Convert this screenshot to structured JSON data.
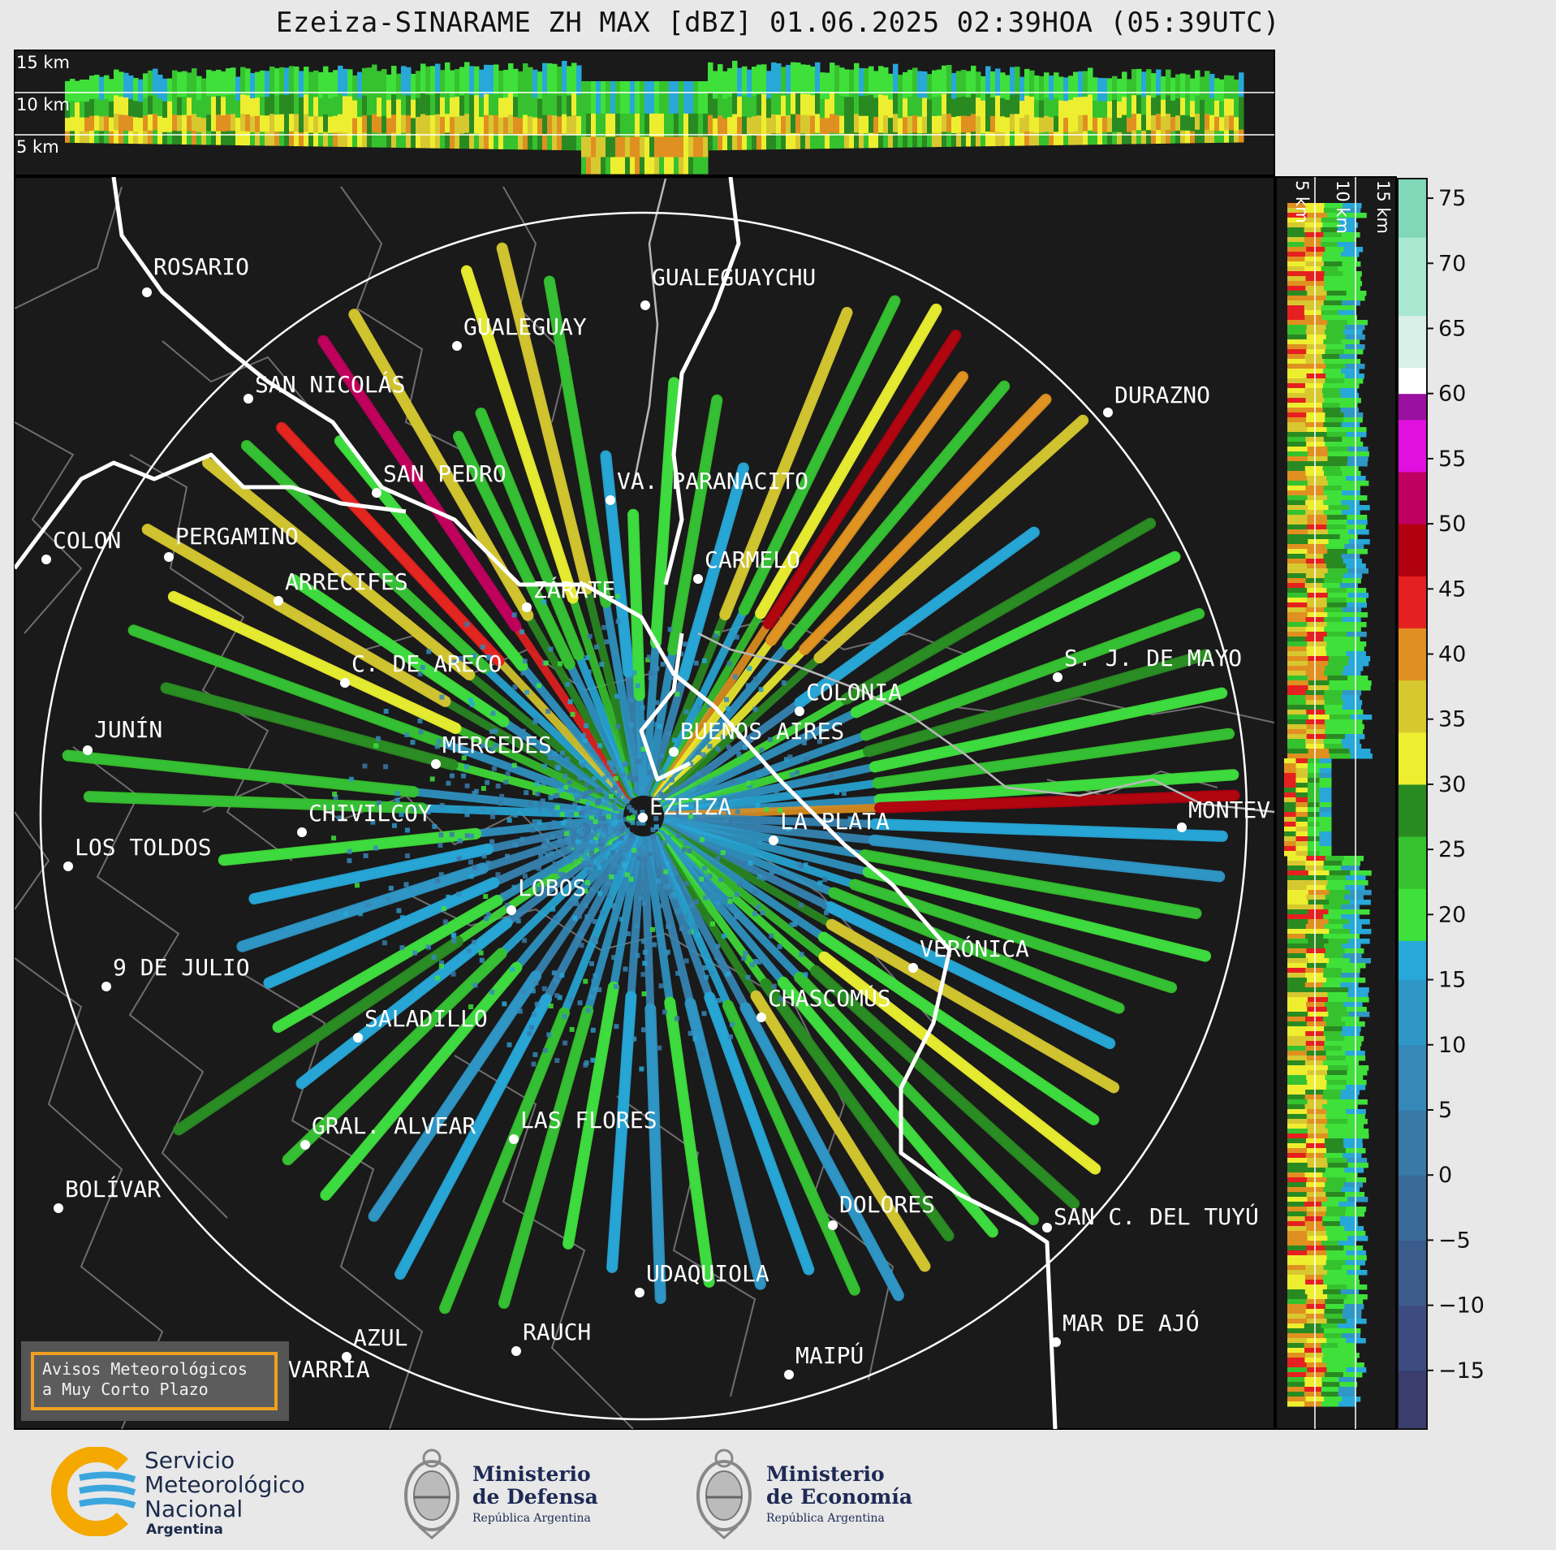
{
  "title": "Ezeiza-SINARAME ZH MAX [dBZ] 01.06.2025 02:39HOA (05:39UTC)",
  "top_panel": {
    "km_labels": [
      "15 km",
      "10 km",
      "5 km"
    ]
  },
  "side_panel": {
    "km_labels": [
      "5 km",
      "10 km",
      "15 km"
    ]
  },
  "colorbar": {
    "ticks": [
      "75",
      "70",
      "65",
      "60",
      "55",
      "50",
      "45",
      "40",
      "35",
      "30",
      "25",
      "20",
      "15",
      "10",
      "5",
      "0",
      "−5",
      "−10",
      "−15"
    ],
    "min": -19.5,
    "max": 76.5,
    "stops": [
      {
        "from": -19.5,
        "to": -15,
        "color": "#3a3d6e"
      },
      {
        "from": -15,
        "to": -10,
        "color": "#3d4c80"
      },
      {
        "from": -10,
        "to": -5,
        "color": "#3b5b8c"
      },
      {
        "from": -5,
        "to": 0,
        "color": "#3a6a98"
      },
      {
        "from": 0,
        "to": 5,
        "color": "#3979a8"
      },
      {
        "from": 5,
        "to": 10,
        "color": "#3688b8"
      },
      {
        "from": 10,
        "to": 15,
        "color": "#2f97c6"
      },
      {
        "from": 15,
        "to": 18,
        "color": "#27a8d8"
      },
      {
        "from": 18,
        "to": 22,
        "color": "#3fe03a"
      },
      {
        "from": 22,
        "to": 26,
        "color": "#36c22e"
      },
      {
        "from": 26,
        "to": 30,
        "color": "#2a8a22"
      },
      {
        "from": 30,
        "to": 34,
        "color": "#eeee30"
      },
      {
        "from": 34,
        "to": 38,
        "color": "#d8c830"
      },
      {
        "from": 38,
        "to": 42,
        "color": "#e09020"
      },
      {
        "from": 42,
        "to": 46,
        "color": "#e52020"
      },
      {
        "from": 46,
        "to": 50,
        "color": "#b00010"
      },
      {
        "from": 50,
        "to": 54,
        "color": "#c00060"
      },
      {
        "from": 54,
        "to": 58,
        "color": "#e010e0"
      },
      {
        "from": 58,
        "to": 60,
        "color": "#9a10a0"
      },
      {
        "from": 60,
        "to": 62,
        "color": "#ffffff"
      },
      {
        "from": 62,
        "to": 66,
        "color": "#d8f0e8"
      },
      {
        "from": 66,
        "to": 72,
        "color": "#a8e8d0"
      },
      {
        "from": 72,
        "to": 76.5,
        "color": "#80d8b8"
      }
    ]
  },
  "cities": [
    {
      "name": "ROSARIO"
    },
    {
      "name": "GUALEGUAYCHU"
    },
    {
      "name": "GUALEGUAY"
    },
    {
      "name": "SAN NICOLÁS"
    },
    {
      "name": "DURAZNO"
    },
    {
      "name": "SAN PEDRO"
    },
    {
      "name": "VA. PARANACITO"
    },
    {
      "name": "COLON"
    },
    {
      "name": "PERGAMINO"
    },
    {
      "name": "CARMELO"
    },
    {
      "name": "ARRECIFES"
    },
    {
      "name": "ZÁRATE"
    },
    {
      "name": "S. J. DE MAYO"
    },
    {
      "name": "C. DE ARECO"
    },
    {
      "name": "COLONIA"
    },
    {
      "name": "JUNÍN"
    },
    {
      "name": "BUENOS AIRES"
    },
    {
      "name": "MERCEDES"
    },
    {
      "name": "EZEIZA"
    },
    {
      "name": "MONTEV"
    },
    {
      "name": "CHIVILCOY"
    },
    {
      "name": "LA PLATA"
    },
    {
      "name": "LOS TOLDOS"
    },
    {
      "name": "LOBOS"
    },
    {
      "name": "VERÓNICA"
    },
    {
      "name": "9 DE JULIO"
    },
    {
      "name": "CHASCOMÚS"
    },
    {
      "name": "SALADILLO"
    },
    {
      "name": "GRAL. ALVEAR"
    },
    {
      "name": "LAS FLORES"
    },
    {
      "name": "BOLÍVAR"
    },
    {
      "name": "DOLORES"
    },
    {
      "name": "SAN C. DEL TUYÚ"
    },
    {
      "name": "UDAQUIOLA"
    },
    {
      "name": "MAR DE AJÓ"
    },
    {
      "name": "AZUL"
    },
    {
      "name": "RAUCH"
    },
    {
      "name": "OLAVARRÍA"
    },
    {
      "name": "MAIPÚ"
    }
  ],
  "avisos": {
    "line1": "Avisos Meteorológicos",
    "line2": "a Muy Corto Plazo"
  },
  "logos": {
    "smn": {
      "line1": "Servicio",
      "line2": "Meteorológico",
      "line3": "Nacional",
      "line4": "Argentina"
    },
    "defensa": {
      "line1": "Ministerio",
      "line2": "de Defensa",
      "line3": "República Argentina"
    },
    "economia": {
      "line1": "Ministerio",
      "line2": "de Economía",
      "line3": "República Argentina"
    }
  }
}
